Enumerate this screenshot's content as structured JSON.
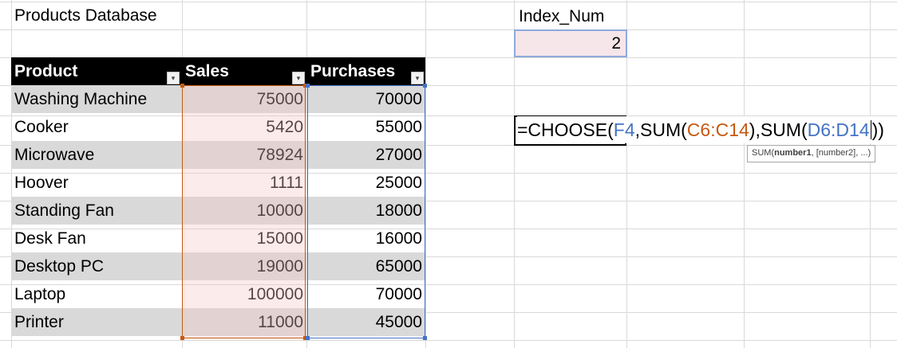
{
  "sheet": {
    "title": "Products Database",
    "index_label": "Index_Num",
    "index_value": "2"
  },
  "table": {
    "headers": [
      "Product",
      "Sales",
      "Purchases"
    ],
    "filter_icon": "dropdown-arrow-icon",
    "rows": [
      {
        "product": "Washing Machine",
        "sales": "75000",
        "purchases": "70000"
      },
      {
        "product": "Cooker",
        "sales": "5420",
        "purchases": "55000"
      },
      {
        "product": "Microwave",
        "sales": "78924",
        "purchases": "27000"
      },
      {
        "product": "Hoover",
        "sales": "1111",
        "purchases": "25000"
      },
      {
        "product": "Standing Fan",
        "sales": "10000",
        "purchases": "18000"
      },
      {
        "product": "Desk Fan",
        "sales": "15000",
        "purchases": "16000"
      },
      {
        "product": "Desktop PC",
        "sales": "19000",
        "purchases": "65000"
      },
      {
        "product": "Laptop",
        "sales": "100000",
        "purchases": "70000"
      },
      {
        "product": "Printer",
        "sales": "11000",
        "purchases": "45000"
      }
    ]
  },
  "formula": {
    "p1": "=CHOOSE(",
    "p2": "F4",
    "p3": ",SUM(",
    "p4": "C6:C14",
    "p5": "),SUM(",
    "p6": "D6:D14",
    "p7": "))",
    "tooltip_fn": "SUM(",
    "tooltip_arg1": "number1",
    "tooltip_rest": ", [number2], ...)"
  },
  "colors": {
    "header_bg": "#000000",
    "band": "#d9d9d9",
    "ref_blue": "#4472c4",
    "ref_orange": "#c55a11"
  }
}
